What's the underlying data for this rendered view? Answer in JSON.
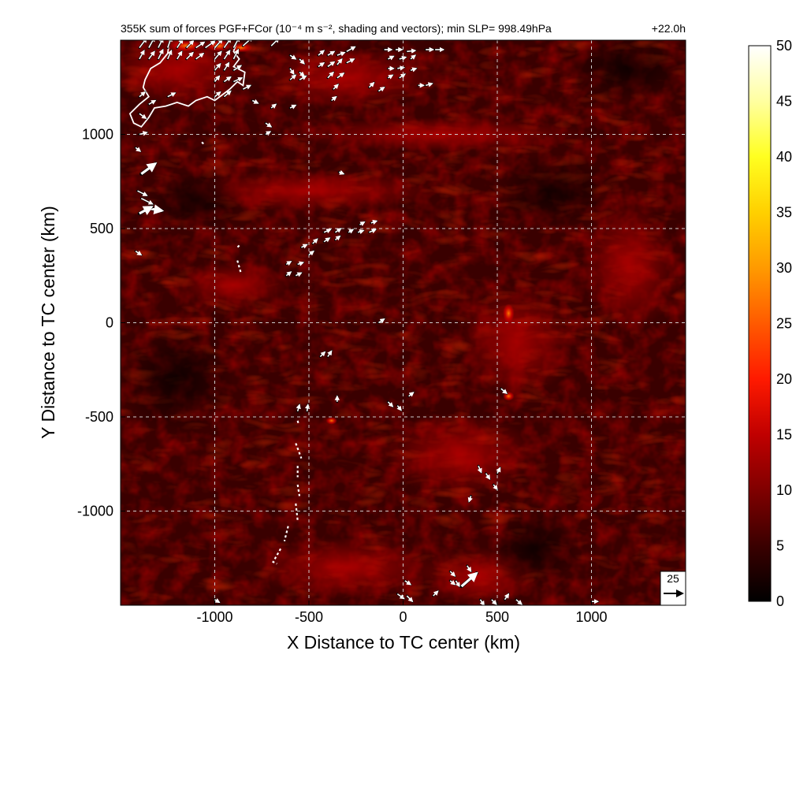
{
  "chart_data": {
    "type": "heatmap",
    "title": "355K sum of forces PGF+FCor (10⁻⁴ m s⁻², shading and vectors); min SLP= 998.49hPa",
    "time_label": "+22.0h",
    "xlabel": "X Distance to TC center (km)",
    "ylabel": "Y Distance to TC center (km)",
    "xlim": [
      -1500,
      1500
    ],
    "ylim": [
      -1500,
      1500
    ],
    "x_ticks": [
      -1000,
      -500,
      0,
      500,
      1000
    ],
    "x_tick_labels": [
      "-1000",
      "-500",
      "0",
      "500",
      "1000"
    ],
    "y_ticks": [
      -1000,
      -500,
      0,
      500,
      1000
    ],
    "y_tick_labels": [
      "-1000",
      "-500",
      "0",
      "500",
      "1000"
    ],
    "grid": true,
    "colorbar": {
      "min": 0,
      "max": 50,
      "ticks": [
        0,
        5,
        10,
        15,
        20,
        25,
        30,
        35,
        40,
        45,
        50
      ],
      "tick_labels": [
        "0",
        "5",
        "10",
        "15",
        "20",
        "25",
        "30",
        "35",
        "40",
        "45",
        "50"
      ],
      "colors": [
        "#000000",
        "#3a0000",
        "#800000",
        "#c00000",
        "#ff1a00",
        "#ff5a00",
        "#ff9a00",
        "#ffd000",
        "#ffff20",
        "#ffffa0",
        "#ffffff"
      ]
    },
    "reference_vector": {
      "value": 25,
      "label": "25"
    },
    "vectors": [
      {
        "x": -1400,
        "y": 1460,
        "u": 15,
        "v": 20
      },
      {
        "x": -1350,
        "y": 1460,
        "u": 12,
        "v": 22
      },
      {
        "x": -1300,
        "y": 1460,
        "u": 10,
        "v": 20
      },
      {
        "x": -1250,
        "y": 1460,
        "u": 8,
        "v": 22
      },
      {
        "x": -1200,
        "y": 1460,
        "u": 12,
        "v": 18
      },
      {
        "x": -1150,
        "y": 1460,
        "u": 15,
        "v": 15
      },
      {
        "x": -1100,
        "y": 1460,
        "u": 18,
        "v": 12
      },
      {
        "x": -1050,
        "y": 1460,
        "u": 20,
        "v": 14
      },
      {
        "x": -1000,
        "y": 1460,
        "u": 16,
        "v": 18
      },
      {
        "x": -950,
        "y": 1460,
        "u": 14,
        "v": 20
      },
      {
        "x": -900,
        "y": 1460,
        "u": 12,
        "v": 22
      },
      {
        "x": -850,
        "y": 1470,
        "u": 20,
        "v": 18
      },
      {
        "x": -700,
        "y": 1470,
        "u": 16,
        "v": 16
      },
      {
        "x": -1400,
        "y": 1400,
        "u": 10,
        "v": 18
      },
      {
        "x": -1350,
        "y": 1400,
        "u": 12,
        "v": 16
      },
      {
        "x": -1300,
        "y": 1400,
        "u": 10,
        "v": 20
      },
      {
        "x": -1250,
        "y": 1400,
        "u": 8,
        "v": 18
      },
      {
        "x": -1200,
        "y": 1400,
        "u": 10,
        "v": 16
      },
      {
        "x": -1150,
        "y": 1400,
        "u": 14,
        "v": 14
      },
      {
        "x": -1100,
        "y": 1400,
        "u": 16,
        "v": 12
      },
      {
        "x": -1000,
        "y": 1400,
        "u": 14,
        "v": 16
      },
      {
        "x": -950,
        "y": 1400,
        "u": 12,
        "v": 18
      },
      {
        "x": -900,
        "y": 1400,
        "u": 10,
        "v": 20
      },
      {
        "x": -1000,
        "y": 1340,
        "u": 12,
        "v": 14
      },
      {
        "x": -950,
        "y": 1340,
        "u": 10,
        "v": 16
      },
      {
        "x": -900,
        "y": 1340,
        "u": 16,
        "v": 10
      },
      {
        "x": -1000,
        "y": 1280,
        "u": 10,
        "v": 12
      },
      {
        "x": -950,
        "y": 1280,
        "u": 14,
        "v": 10
      },
      {
        "x": -900,
        "y": 1280,
        "u": 18,
        "v": 8
      },
      {
        "x": -1400,
        "y": 1200,
        "u": 12,
        "v": 10
      },
      {
        "x": -1350,
        "y": 1160,
        "u": 14,
        "v": 8
      },
      {
        "x": -1250,
        "y": 1200,
        "u": 16,
        "v": 8
      },
      {
        "x": -1000,
        "y": 1200,
        "u": 12,
        "v": 10
      },
      {
        "x": -950,
        "y": 1200,
        "u": 14,
        "v": 12
      },
      {
        "x": -850,
        "y": 1240,
        "u": 16,
        "v": 8
      },
      {
        "x": -1400,
        "y": 1110,
        "u": 14,
        "v": -10
      },
      {
        "x": -1400,
        "y": 1000,
        "u": 16,
        "v": 4
      },
      {
        "x": -1420,
        "y": 930,
        "u": 10,
        "v": -8
      },
      {
        "x": -1390,
        "y": 790,
        "u": 30,
        "v": 22
      },
      {
        "x": -1410,
        "y": 700,
        "u": 20,
        "v": -10
      },
      {
        "x": -1390,
        "y": 660,
        "u": 24,
        "v": -12
      },
      {
        "x": -1370,
        "y": 610,
        "u": 36,
        "v": -6
      },
      {
        "x": -1400,
        "y": 580,
        "u": 26,
        "v": 14
      },
      {
        "x": -1420,
        "y": 380,
        "u": 12,
        "v": -8
      },
      {
        "x": -600,
        "y": 1420,
        "u": 12,
        "v": -8
      },
      {
        "x": -550,
        "y": 1400,
        "u": 10,
        "v": -10
      },
      {
        "x": -600,
        "y": 1350,
        "u": 8,
        "v": -12
      },
      {
        "x": -550,
        "y": 1330,
        "u": 10,
        "v": -8
      },
      {
        "x": -450,
        "y": 1420,
        "u": 12,
        "v": 10
      },
      {
        "x": -400,
        "y": 1420,
        "u": 14,
        "v": 8
      },
      {
        "x": -350,
        "y": 1420,
        "u": 16,
        "v": 6
      },
      {
        "x": -300,
        "y": 1440,
        "u": 18,
        "v": 10
      },
      {
        "x": -450,
        "y": 1360,
        "u": 12,
        "v": 8
      },
      {
        "x": -400,
        "y": 1360,
        "u": 14,
        "v": 10
      },
      {
        "x": -350,
        "y": 1370,
        "u": 10,
        "v": 12
      },
      {
        "x": -300,
        "y": 1380,
        "u": 16,
        "v": 8
      },
      {
        "x": -600,
        "y": 1290,
        "u": 12,
        "v": 10
      },
      {
        "x": -550,
        "y": 1290,
        "u": 14,
        "v": 8
      },
      {
        "x": -400,
        "y": 1300,
        "u": 12,
        "v": 12
      },
      {
        "x": -350,
        "y": 1300,
        "u": 14,
        "v": 10
      },
      {
        "x": -370,
        "y": 1240,
        "u": 10,
        "v": 10
      },
      {
        "x": -380,
        "y": 1180,
        "u": 10,
        "v": 8
      },
      {
        "x": -600,
        "y": 1140,
        "u": 12,
        "v": 6
      },
      {
        "x": -700,
        "y": 1140,
        "u": 10,
        "v": 8
      },
      {
        "x": -730,
        "y": 1060,
        "u": 12,
        "v": -8
      },
      {
        "x": -800,
        "y": 1180,
        "u": 12,
        "v": -6
      },
      {
        "x": -730,
        "y": 1000,
        "u": 10,
        "v": 6
      },
      {
        "x": -100,
        "y": 1450,
        "u": 16,
        "v": 0
      },
      {
        "x": -40,
        "y": 1450,
        "u": 14,
        "v": 0
      },
      {
        "x": 20,
        "y": 1440,
        "u": 18,
        "v": 2
      },
      {
        "x": 120,
        "y": 1450,
        "u": 16,
        "v": 0
      },
      {
        "x": 170,
        "y": 1450,
        "u": 18,
        "v": 0
      },
      {
        "x": -80,
        "y": 1400,
        "u": 12,
        "v": 6
      },
      {
        "x": -20,
        "y": 1400,
        "u": 14,
        "v": 4
      },
      {
        "x": 40,
        "y": 1400,
        "u": 10,
        "v": 8
      },
      {
        "x": -80,
        "y": 1350,
        "u": 12,
        "v": 0
      },
      {
        "x": -30,
        "y": 1350,
        "u": 14,
        "v": 2
      },
      {
        "x": 40,
        "y": 1340,
        "u": 12,
        "v": 4
      },
      {
        "x": -80,
        "y": 1300,
        "u": 10,
        "v": 6
      },
      {
        "x": -20,
        "y": 1300,
        "u": 12,
        "v": 8
      },
      {
        "x": 80,
        "y": 1260,
        "u": 12,
        "v": 0
      },
      {
        "x": 120,
        "y": 1260,
        "u": 14,
        "v": 4
      },
      {
        "x": -180,
        "y": 1250,
        "u": 10,
        "v": 10
      },
      {
        "x": -130,
        "y": 1230,
        "u": 12,
        "v": 8
      },
      {
        "x": -340,
        "y": 800,
        "u": 10,
        "v": -4
      },
      {
        "x": -620,
        "y": 310,
        "u": 10,
        "v": 6
      },
      {
        "x": -560,
        "y": 310,
        "u": 12,
        "v": 4
      },
      {
        "x": -620,
        "y": 250,
        "u": 10,
        "v": 8
      },
      {
        "x": -570,
        "y": 250,
        "u": 12,
        "v": 6
      },
      {
        "x": -500,
        "y": 360,
        "u": 10,
        "v": 8
      },
      {
        "x": -540,
        "y": 400,
        "u": 12,
        "v": 6
      },
      {
        "x": -480,
        "y": 420,
        "u": 10,
        "v": 10
      },
      {
        "x": -420,
        "y": 430,
        "u": 12,
        "v": 8
      },
      {
        "x": -360,
        "y": 440,
        "u": 10,
        "v": 8
      },
      {
        "x": -420,
        "y": 480,
        "u": 14,
        "v": 6
      },
      {
        "x": -360,
        "y": 480,
        "u": 12,
        "v": 8
      },
      {
        "x": -290,
        "y": 480,
        "u": 10,
        "v": 6
      },
      {
        "x": -240,
        "y": 480,
        "u": 12,
        "v": 4
      },
      {
        "x": -180,
        "y": 480,
        "u": 14,
        "v": 6
      },
      {
        "x": -230,
        "y": 520,
        "u": 10,
        "v": 6
      },
      {
        "x": -170,
        "y": 530,
        "u": 12,
        "v": 4
      },
      {
        "x": -130,
        "y": 0,
        "u": 12,
        "v": 8
      },
      {
        "x": -440,
        "y": -180,
        "u": 10,
        "v": 10
      },
      {
        "x": -400,
        "y": -180,
        "u": 8,
        "v": 12
      },
      {
        "x": -560,
        "y": -470,
        "u": 4,
        "v": 14
      },
      {
        "x": -510,
        "y": -470,
        "u": 2,
        "v": 14
      },
      {
        "x": -350,
        "y": -420,
        "u": 0,
        "v": 12
      },
      {
        "x": -80,
        "y": -420,
        "u": 10,
        "v": -10
      },
      {
        "x": -30,
        "y": -440,
        "u": 8,
        "v": -10
      },
      {
        "x": 30,
        "y": -390,
        "u": 10,
        "v": 8
      },
      {
        "x": 520,
        "y": -350,
        "u": 12,
        "v": -10
      },
      {
        "x": 400,
        "y": -760,
        "u": 6,
        "v": -14
      },
      {
        "x": 440,
        "y": -800,
        "u": 8,
        "v": -12
      },
      {
        "x": 500,
        "y": -800,
        "u": 6,
        "v": 12
      },
      {
        "x": 480,
        "y": -860,
        "u": 8,
        "v": -10
      },
      {
        "x": 360,
        "y": -920,
        "u": -4,
        "v": -12
      },
      {
        "x": 340,
        "y": -1290,
        "u": 8,
        "v": -12
      },
      {
        "x": 250,
        "y": -1320,
        "u": 10,
        "v": -10
      },
      {
        "x": 280,
        "y": -1370,
        "u": 8,
        "v": -12
      },
      {
        "x": 250,
        "y": -1370,
        "u": 10,
        "v": -8
      },
      {
        "x": 310,
        "y": -1400,
        "u": 32,
        "v": 28
      },
      {
        "x": 10,
        "y": -1370,
        "u": 12,
        "v": -8
      },
      {
        "x": -30,
        "y": -1440,
        "u": 14,
        "v": -10
      },
      {
        "x": 20,
        "y": -1450,
        "u": 12,
        "v": -12
      },
      {
        "x": 160,
        "y": -1450,
        "u": 10,
        "v": 10
      },
      {
        "x": 410,
        "y": -1470,
        "u": 8,
        "v": -12
      },
      {
        "x": 470,
        "y": -1470,
        "u": 10,
        "v": -10
      },
      {
        "x": 540,
        "y": -1470,
        "u": 8,
        "v": 12
      },
      {
        "x": 600,
        "y": -1470,
        "u": 12,
        "v": -10
      },
      {
        "x": 1000,
        "y": -1480,
        "u": 14,
        "v": 0
      },
      {
        "x": -1000,
        "y": -1470,
        "u": 10,
        "v": -6
      }
    ],
    "coastline_km": [
      [
        -1240,
        1500
      ],
      [
        -1250,
        1430
      ],
      [
        -1290,
        1380
      ],
      [
        -1340,
        1350
      ],
      [
        -1370,
        1290
      ],
      [
        -1380,
        1250
      ],
      [
        -1350,
        1200
      ],
      [
        -1400,
        1160
      ],
      [
        -1450,
        1110
      ],
      [
        -1430,
        1060
      ],
      [
        -1390,
        1040
      ],
      [
        -1350,
        1090
      ],
      [
        -1320,
        1140
      ],
      [
        -1260,
        1150
      ],
      [
        -1200,
        1170
      ],
      [
        -1140,
        1150
      ],
      [
        -1100,
        1180
      ],
      [
        -1040,
        1200
      ],
      [
        -1000,
        1180
      ],
      [
        -960,
        1210
      ],
      [
        -920,
        1240
      ],
      [
        -880,
        1280
      ],
      [
        -850,
        1260
      ],
      [
        -840,
        1330
      ],
      [
        -900,
        1360
      ],
      [
        -870,
        1400
      ],
      [
        -900,
        1440
      ],
      [
        -880,
        1500
      ]
    ],
    "contour_segments_km": [
      [
        [
          -880,
          330
        ],
        [
          -860,
          260
        ]
      ],
      [
        [
          -570,
          -640
        ],
        [
          -540,
          -720
        ]
      ],
      [
        [
          -560,
          -760
        ],
        [
          -560,
          -820
        ]
      ],
      [
        [
          -560,
          -860
        ],
        [
          -550,
          -920
        ]
      ],
      [
        [
          -570,
          -960
        ],
        [
          -560,
          -1050
        ]
      ],
      [
        [
          -610,
          -1080
        ],
        [
          -630,
          -1160
        ]
      ],
      [
        [
          -650,
          -1200
        ],
        [
          -690,
          -1270
        ],
        [
          -670,
          -1280
        ]
      ],
      [
        [
          -1060,
          950
        ],
        [
          -1070,
          960
        ]
      ],
      [
        [
          -870,
          410
        ],
        [
          -880,
          400
        ]
      ],
      [
        [
          -560,
          -520
        ],
        [
          -555,
          -540
        ]
      ]
    ]
  }
}
